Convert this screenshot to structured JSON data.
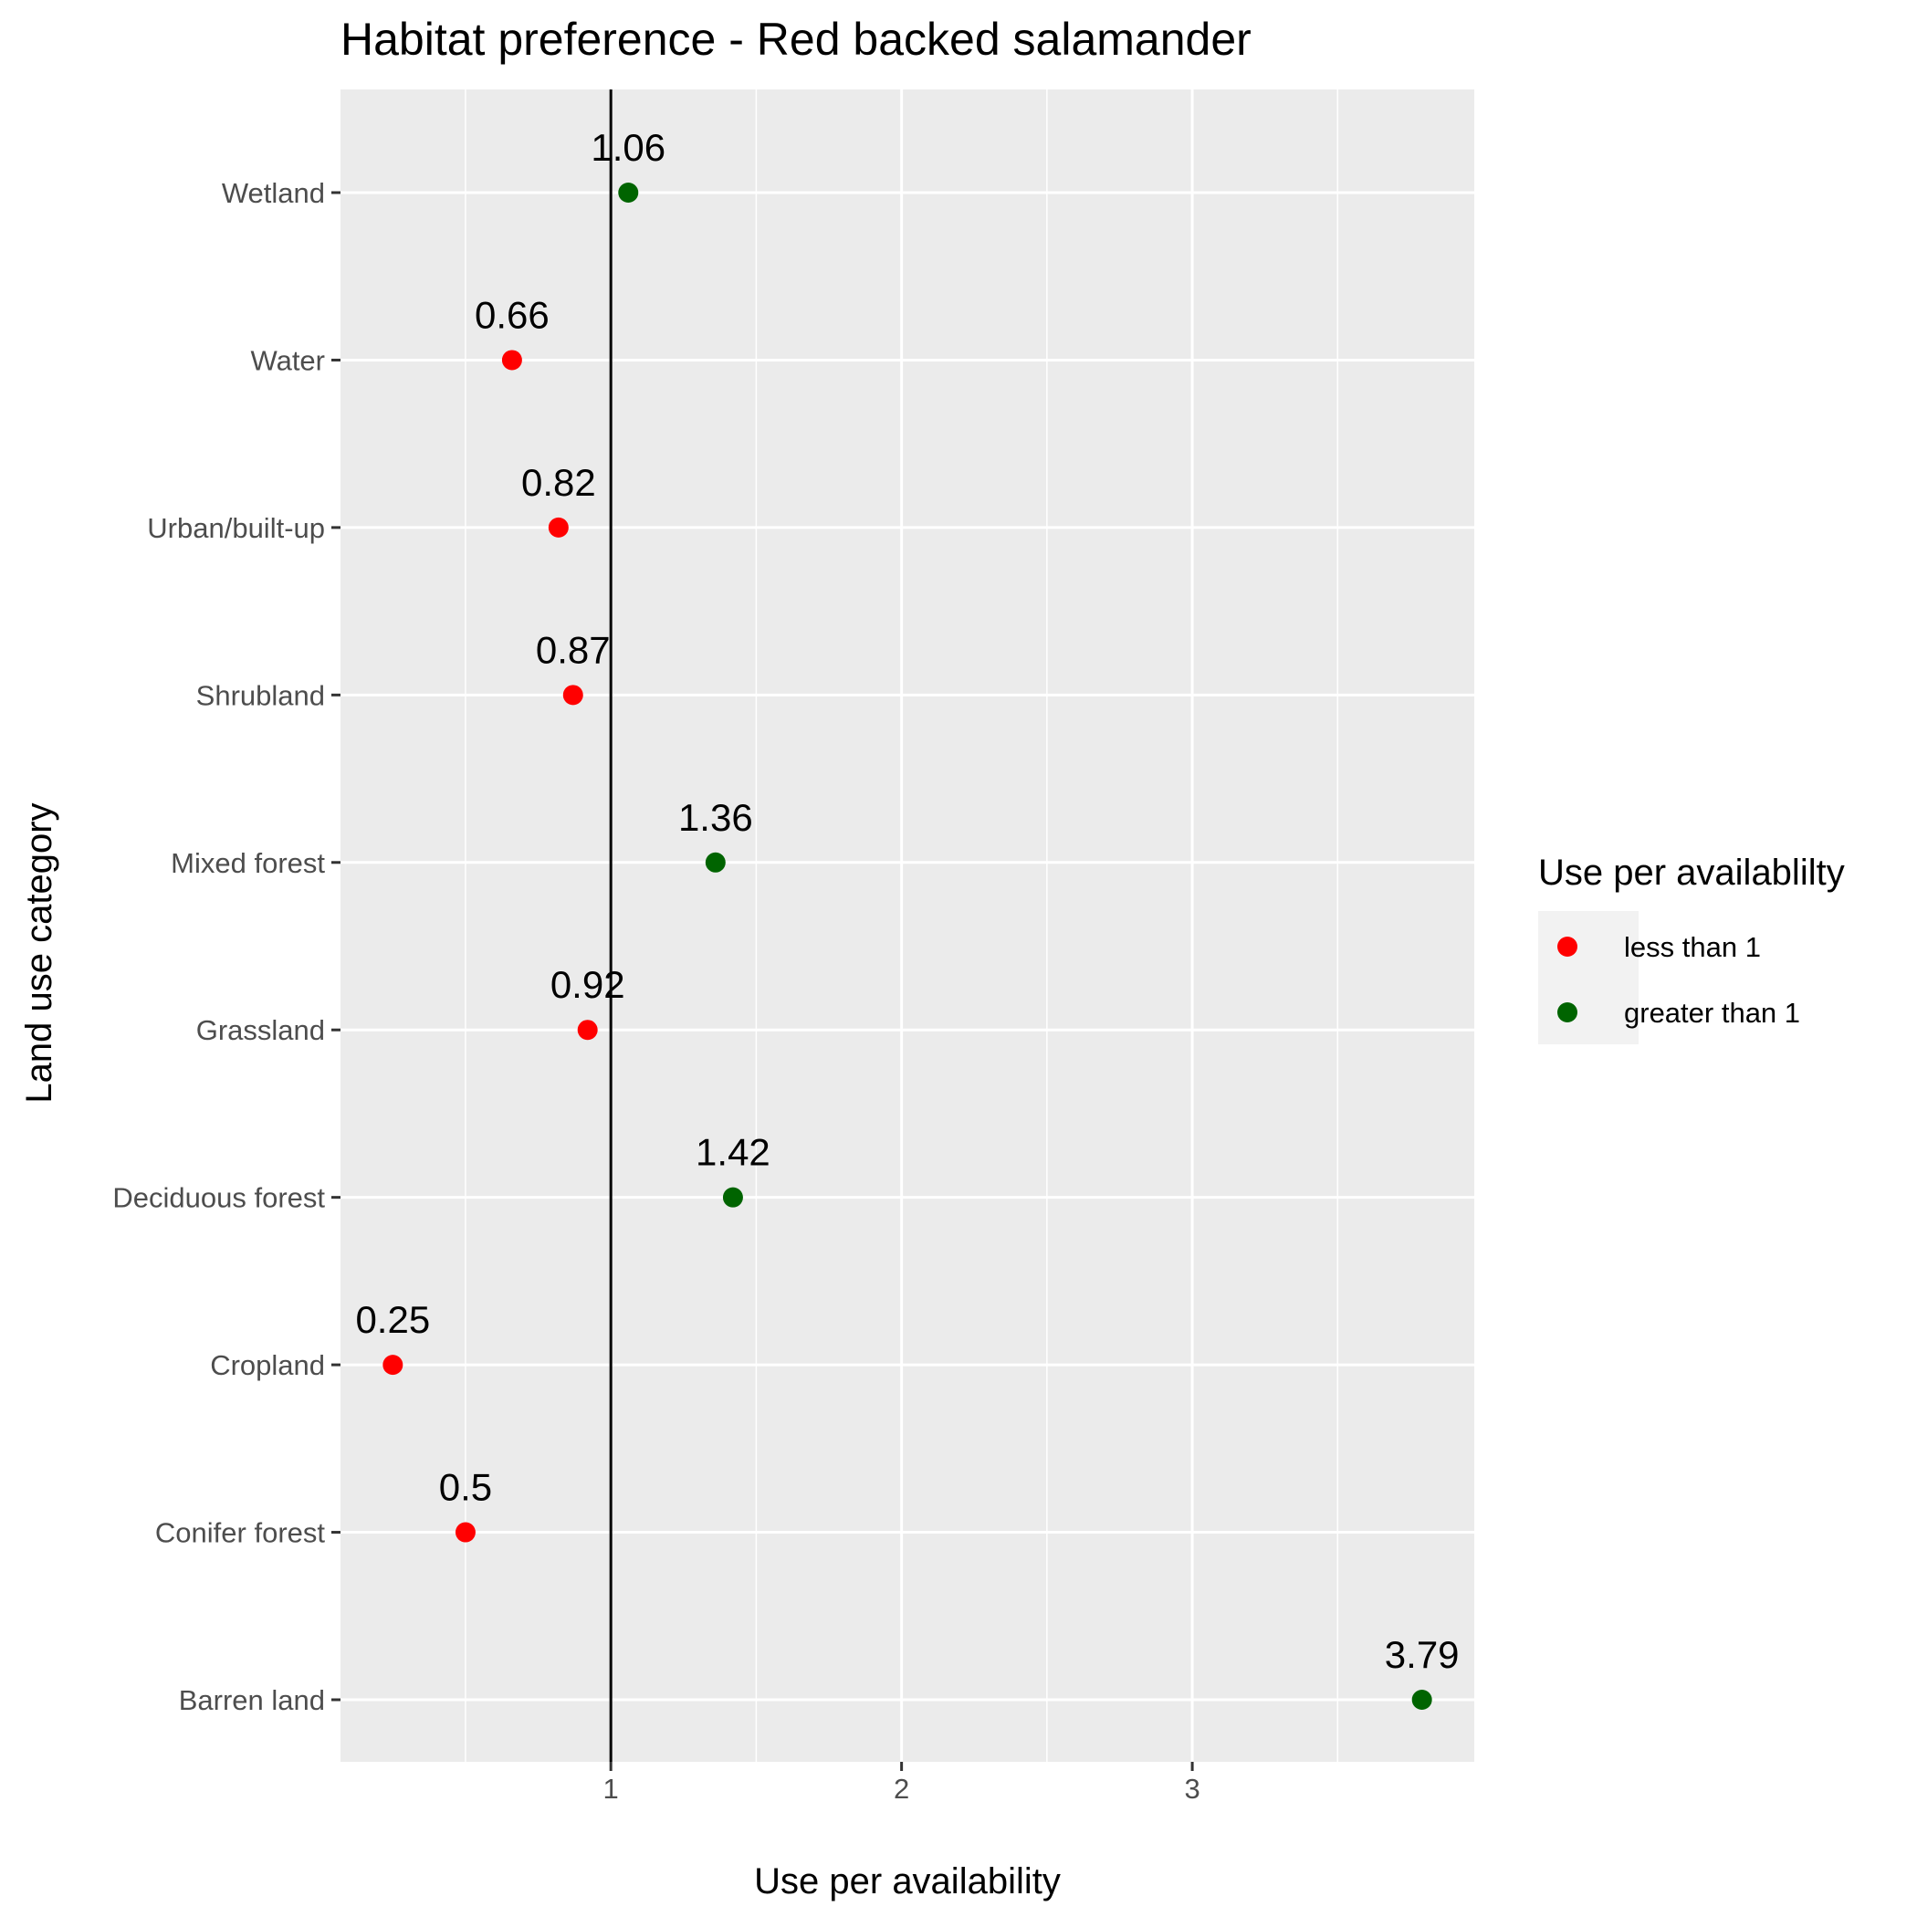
{
  "chart_data": {
    "type": "scatter",
    "title": "Habitat preference - Red backed salamander",
    "xlabel": "Use per availability",
    "ylabel": "Land use category",
    "xlim": [
      0.07,
      3.97
    ],
    "x_ticks": [
      1,
      2,
      3
    ],
    "reference_line_x": 1,
    "grid": true,
    "categories": [
      "Wetland",
      "Water",
      "Urban/built-up",
      "Shrubland",
      "Mixed forest",
      "Grassland",
      "Deciduous forest",
      "Cropland",
      "Conifer forest",
      "Barren land"
    ],
    "points": [
      {
        "category": "Wetland",
        "value": 1.06,
        "label": "1.06",
        "group": "greater than 1"
      },
      {
        "category": "Water",
        "value": 0.66,
        "label": "0.66",
        "group": "less than 1"
      },
      {
        "category": "Urban/built-up",
        "value": 0.82,
        "label": "0.82",
        "group": "less than 1"
      },
      {
        "category": "Shrubland",
        "value": 0.87,
        "label": "0.87",
        "group": "less than 1"
      },
      {
        "category": "Mixed forest",
        "value": 1.36,
        "label": "1.36",
        "group": "greater than 1"
      },
      {
        "category": "Grassland",
        "value": 0.92,
        "label": "0.92",
        "group": "less than 1"
      },
      {
        "category": "Deciduous forest",
        "value": 1.42,
        "label": "1.42",
        "group": "greater than 1"
      },
      {
        "category": "Cropland",
        "value": 0.25,
        "label": "0.25",
        "group": "less than 1"
      },
      {
        "category": "Conifer forest",
        "value": 0.5,
        "label": "0.5",
        "group": "less than 1"
      },
      {
        "category": "Barren land",
        "value": 3.79,
        "label": "3.79",
        "group": "greater than 1"
      }
    ],
    "legend": {
      "title": "Use per availablilty",
      "position": "right",
      "items": [
        {
          "name": "less than 1",
          "color": "#ff0000"
        },
        {
          "name": "greater than 1",
          "color": "#006400"
        }
      ]
    },
    "colors": {
      "panel_background": "#ebebeb",
      "grid": "#ffffff",
      "reference_line": "#000000"
    }
  }
}
